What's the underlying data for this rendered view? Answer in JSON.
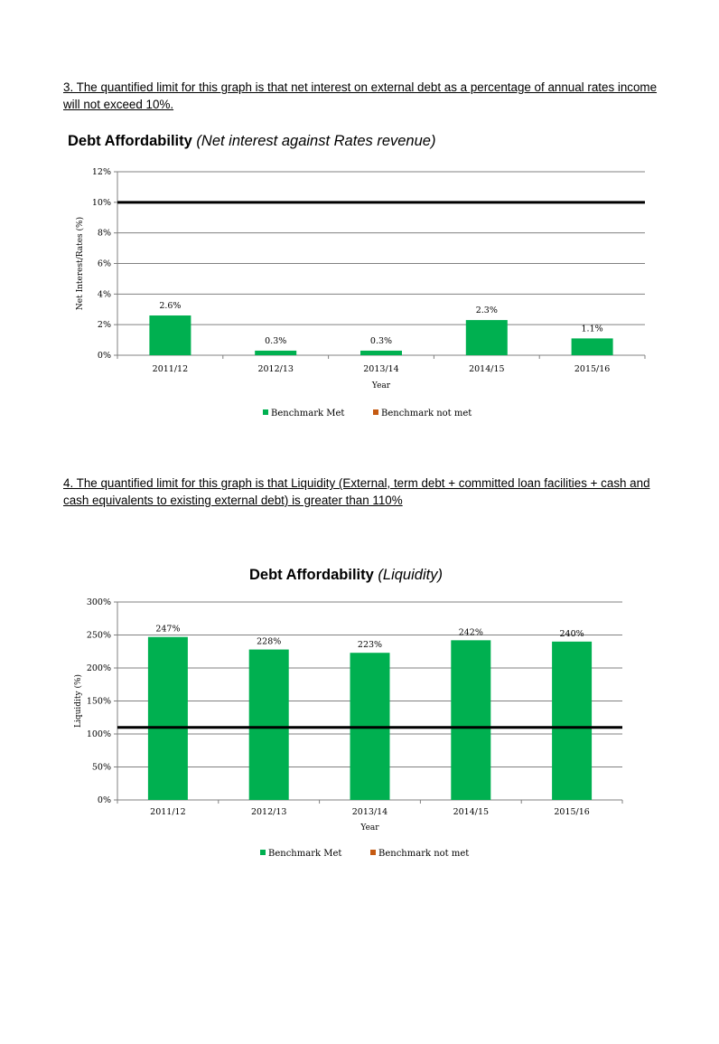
{
  "paragraphs": {
    "p1": "3. The quantified limit for this graph is that net interest on external debt as a percentage of annual rates income will not exceed 10%.",
    "p2": "4. The quantified limit for this graph is that Liquidity (External, term debt + committed loan facilities + cash and cash equivalents to existing external debt) is greater than 110%"
  },
  "colors": {
    "met": "#00b050",
    "not_met": "#c55a11",
    "axis": "#808080",
    "limit_line": "#000000"
  },
  "chart_data": [
    {
      "type": "bar",
      "title": "Debt Affordability",
      "subtitle": "(Net interest against Rates revenue)",
      "xlabel": "Year",
      "ylabel": "Net Interest/Rates  (%)",
      "categories": [
        "2011/12",
        "2012/13",
        "2013/14",
        "2014/15",
        "2015/16"
      ],
      "series": [
        {
          "name": "Benchmark Met",
          "values": [
            2.6,
            0.3,
            0.3,
            2.3,
            1.1
          ]
        }
      ],
      "data_labels": [
        "2.6%",
        "0.3%",
        "0.3%",
        "2.3%",
        "1.1%"
      ],
      "ylim": [
        0,
        12
      ],
      "yticks": [
        0,
        2,
        4,
        6,
        8,
        10,
        12
      ],
      "ytick_labels": [
        "0%",
        "2%",
        "4%",
        "6%",
        "8%",
        "10%",
        "12%"
      ],
      "limit_line": 10,
      "legend": [
        "Benchmark Met",
        "Benchmark not met"
      ],
      "legend_position": "bottom",
      "grid": true
    },
    {
      "type": "bar",
      "title": "Debt Affordability",
      "subtitle": "(Liquidity)",
      "xlabel": "Year",
      "ylabel": "Liquidity  (%)",
      "categories": [
        "2011/12",
        "2012/13",
        "2013/14",
        "2014/15",
        "2015/16"
      ],
      "series": [
        {
          "name": "Benchmark Met",
          "values": [
            247,
            228,
            223,
            242,
            240
          ]
        }
      ],
      "data_labels": [
        "247%",
        "228%",
        "223%",
        "242%",
        "240%"
      ],
      "ylim": [
        0,
        300
      ],
      "yticks": [
        0,
        50,
        100,
        150,
        200,
        250,
        300
      ],
      "ytick_labels": [
        "0%",
        "50%",
        "100%",
        "150%",
        "200%",
        "250%",
        "300%"
      ],
      "limit_line": 110,
      "legend": [
        "Benchmark Met",
        "Benchmark not met"
      ],
      "legend_position": "bottom",
      "grid": true
    }
  ]
}
